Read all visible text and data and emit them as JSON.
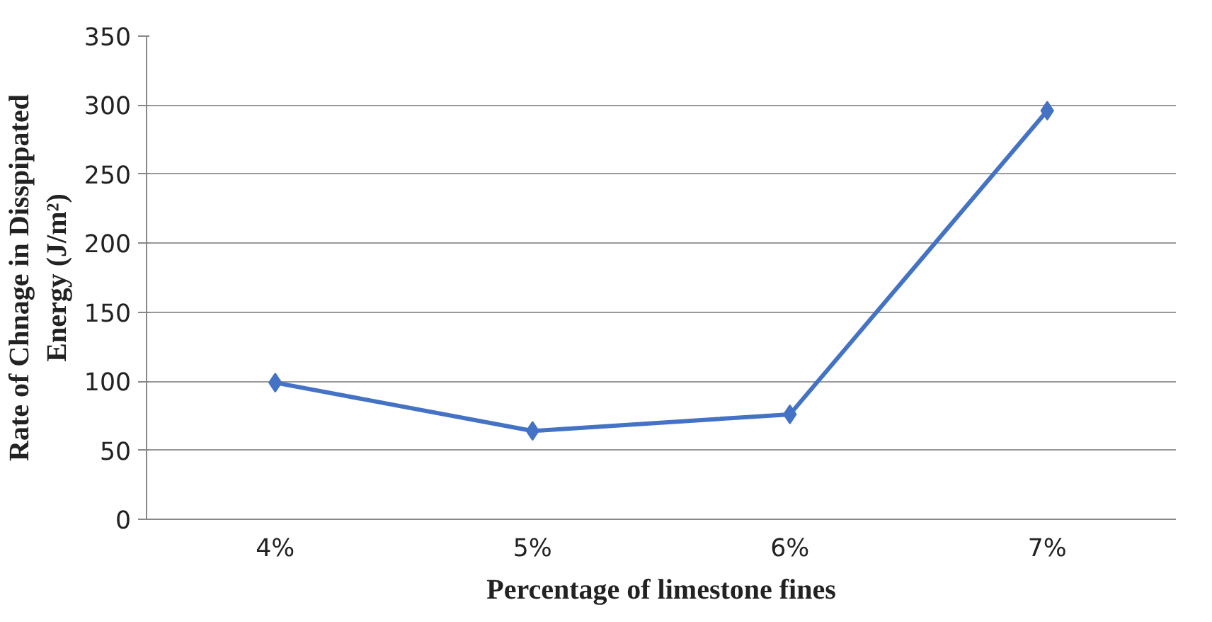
{
  "chart_data": {
    "type": "line",
    "xlabel": "Percentage of limestone fines",
    "ylabel": "Rate of Chnage in Disspipated\nEnergy (J/m²)",
    "categories": [
      "4%",
      "5%",
      "6%",
      "7%"
    ],
    "series": [
      {
        "color": "#4472c4",
        "values": [
          99,
          64,
          76,
          296
        ]
      }
    ],
    "ylim": [
      0,
      350
    ],
    "yticks": [
      0,
      50,
      100,
      150,
      200,
      250,
      300,
      350
    ],
    "grid": "y",
    "marker": "diamond",
    "line_style": "solid"
  }
}
